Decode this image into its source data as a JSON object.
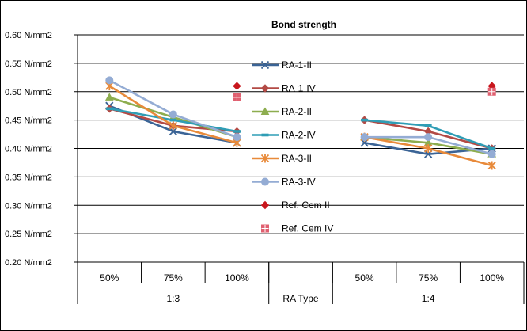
{
  "chart_data": {
    "type": "line",
    "title": "Bond strength",
    "ylabel": "",
    "xlabel": "",
    "y_tick_labels": [
      "0.20 N/mm2",
      "0.25 N/mm2",
      "0.30 N/mm2",
      "0.35 N/mm2",
      "0.40 N/mm2",
      "0.45 N/mm2",
      "0.50 N/mm2",
      "0.55 N/mm2",
      "0.60 N/mm2"
    ],
    "y_ticks": [
      0.2,
      0.25,
      0.3,
      0.35,
      0.4,
      0.45,
      0.5,
      0.55,
      0.6
    ],
    "ylim": [
      0.2,
      0.6
    ],
    "grid": true,
    "legend_position": "center",
    "categories": [
      "50%",
      "75%",
      "100%",
      "",
      "50%",
      "75%",
      "100%"
    ],
    "groups": [
      {
        "label": "1:3",
        "start": 0,
        "end": 2
      },
      {
        "label": "RA Type",
        "start": 3,
        "end": 3
      },
      {
        "label": "1:4",
        "start": 4,
        "end": 6
      }
    ],
    "series": [
      {
        "name": "RA-1-II",
        "color": "#3b6496",
        "marker": "x",
        "line": true,
        "values": [
          0.475,
          0.43,
          0.41,
          null,
          0.41,
          0.39,
          0.4
        ]
      },
      {
        "name": "RA-1-IV",
        "color": "#b34a45",
        "marker": "diamond",
        "line": true,
        "values": [
          0.47,
          0.44,
          0.43,
          null,
          0.45,
          0.43,
          0.4
        ]
      },
      {
        "name": "RA-2-II",
        "color": "#8dad4f",
        "marker": "triangle",
        "line": true,
        "values": [
          0.49,
          0.455,
          0.42,
          null,
          0.42,
          0.41,
          0.39
        ]
      },
      {
        "name": "RA-2-IV",
        "color": "#2f9db5",
        "marker": "bar",
        "line": true,
        "values": [
          0.47,
          0.45,
          0.43,
          null,
          0.45,
          0.44,
          0.4
        ]
      },
      {
        "name": "RA-3-II",
        "color": "#e88a3a",
        "marker": "asterisk",
        "line": true,
        "values": [
          0.51,
          0.44,
          0.41,
          null,
          0.42,
          0.4,
          0.37
        ]
      },
      {
        "name": "RA-3-IV",
        "color": "#94acd4",
        "marker": "circle",
        "line": true,
        "values": [
          0.52,
          0.46,
          0.42,
          null,
          0.42,
          0.42,
          0.39
        ]
      },
      {
        "name": "Ref. Cem II",
        "color": "#c8161d",
        "marker": "diamond",
        "line": false,
        "values": [
          null,
          null,
          0.51,
          null,
          null,
          null,
          0.51
        ]
      },
      {
        "name": "Ref. Cem IV",
        "color": "#e06070",
        "marker": "square",
        "line": false,
        "values": [
          null,
          null,
          0.49,
          null,
          null,
          null,
          0.5
        ]
      }
    ]
  }
}
